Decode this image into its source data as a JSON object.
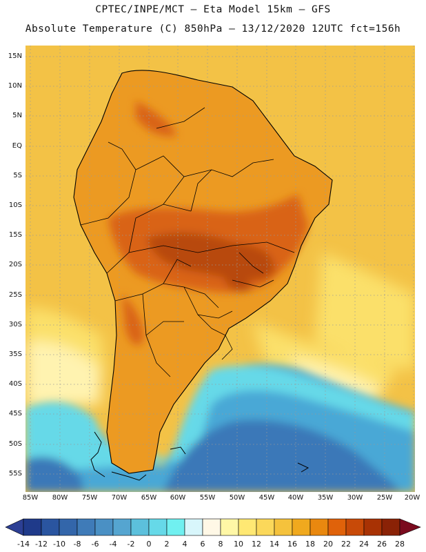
{
  "title": {
    "line1": "CPTEC/INPE/MCT –  Eta Model 15km – GFS",
    "line2": "Absolute Temperature (C) 850hPa – 13/12/2020 12UTC fct=156h"
  },
  "axes": {
    "lat_labels": [
      "15N",
      "10N",
      "5N",
      "EQ",
      "5S",
      "10S",
      "15S",
      "20S",
      "25S",
      "30S",
      "35S",
      "40S",
      "45S",
      "50S",
      "55S"
    ],
    "lon_labels": [
      "85W",
      "80W",
      "75W",
      "70W",
      "65W",
      "60W",
      "55W",
      "50W",
      "45W",
      "40W",
      "35W",
      "30W",
      "25W",
      "20W"
    ]
  },
  "colorbar": {
    "labels": [
      "-14",
      "-12",
      "-10",
      "-8",
      "-6",
      "-4",
      "-2",
      "0",
      "2",
      "4",
      "6",
      "8",
      "10",
      "12",
      "14",
      "16",
      "18",
      "20",
      "22",
      "24",
      "26",
      "28"
    ],
    "colors": [
      "#1f3a8a",
      "#2a55a0",
      "#3366aa",
      "#3f7bb8",
      "#4a90c4",
      "#55a5d0",
      "#5cc0dc",
      "#66d9e8",
      "#70f0f0",
      "#d8f6fb",
      "#fff8e6",
      "#fff7a6",
      "#ffe873",
      "#fbd85a",
      "#f5c23c",
      "#f0a91e",
      "#e9880f",
      "#e0620a",
      "#c84a08",
      "#a83204",
      "#8a2206"
    ],
    "under_color": "#2c3f94",
    "over_color": "#7a0a1e"
  },
  "map_fields": {
    "ocean_warm": "#f3c246",
    "ocean_mid": "#fbe06a",
    "ocean_cool": "#fff3b0",
    "continent": "#ec9a22",
    "interior_hot": "#d96418",
    "core_hot": "#b84a10",
    "south_cold": "#4aa8d6",
    "south_cyan": "#66d9e8",
    "deep_cold": "#3b78b8"
  }
}
